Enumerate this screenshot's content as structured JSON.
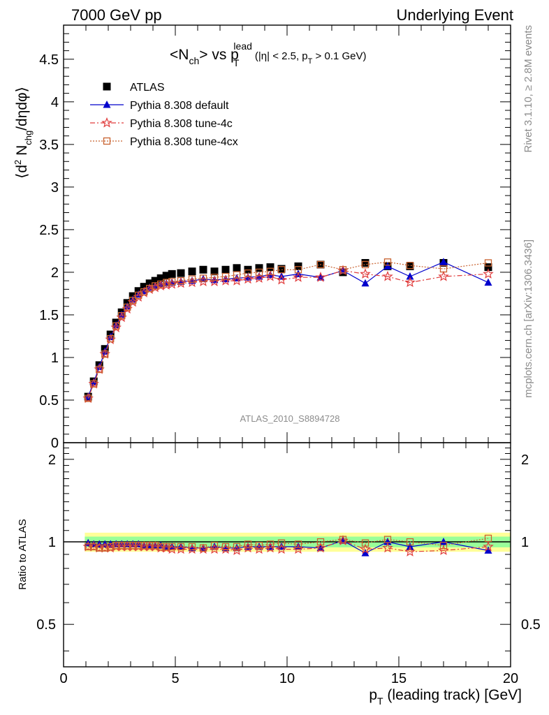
{
  "header": {
    "left": "7000 GeV pp",
    "right": "Underlying Event"
  },
  "side": {
    "rivet": "Rivet 3.1.10, ≥ 2.8M events",
    "mcplots": "mcplots.cern.ch [arXiv:1306.3436]"
  },
  "watermark": "ATLAS_2010_S8894728",
  "colors": {
    "atlas": "#000000",
    "default": "#0000cc",
    "tune4c": "#e03c3c",
    "tune4cx": "#c8612e",
    "band_inner": "#99ff99",
    "band_outer": "#ffff99"
  },
  "chart_data": [
    {
      "type": "scatter",
      "title": "<N_ch> vs p_T^lead (|η| < 2.5, p_T > 0.1 GeV)",
      "ylabel": "⟨d² N_chg/dηdφ⟩",
      "xlim": [
        0,
        20
      ],
      "ylim": [
        0,
        4.9
      ],
      "x_ticks": [
        0,
        5,
        10,
        15,
        20
      ],
      "y_ticks": [
        "0",
        "0.5",
        "1",
        "1.5",
        "2",
        "2.5",
        "3",
        "3.5",
        "4",
        "4.5"
      ],
      "legend_position": "top-left",
      "x": [
        1.1,
        1.35,
        1.6,
        1.85,
        2.1,
        2.35,
        2.6,
        2.85,
        3.1,
        3.35,
        3.6,
        3.85,
        4.1,
        4.35,
        4.6,
        4.85,
        5.25,
        5.75,
        6.25,
        6.75,
        7.25,
        7.75,
        8.25,
        8.75,
        9.25,
        9.75,
        10.5,
        11.5,
        12.5,
        13.5,
        14.5,
        15.5,
        17,
        19
      ],
      "series": [
        {
          "name": "ATLAS",
          "marker": "square",
          "values": [
            0.54,
            0.72,
            0.91,
            1.1,
            1.27,
            1.41,
            1.53,
            1.64,
            1.72,
            1.78,
            1.83,
            1.87,
            1.9,
            1.93,
            1.96,
            1.98,
            1.99,
            2.01,
            2.03,
            2.01,
            2.03,
            2.05,
            2.03,
            2.05,
            2.06,
            2.04,
            2.07,
            2.09,
            2.0,
            2.11,
            2.07,
            2.07,
            2.11,
            2.06
          ]
        },
        {
          "name": "Pythia 8.308 default",
          "marker": "triangle",
          "values": [
            0.54,
            0.71,
            0.89,
            1.07,
            1.24,
            1.38,
            1.5,
            1.6,
            1.68,
            1.74,
            1.78,
            1.82,
            1.84,
            1.86,
            1.87,
            1.88,
            1.89,
            1.9,
            1.92,
            1.91,
            1.92,
            1.93,
            1.94,
            1.95,
            1.97,
            1.95,
            1.98,
            1.94,
            2.02,
            1.87,
            2.07,
            1.95,
            2.12,
            1.88
          ]
        },
        {
          "name": "Pythia 8.308 tune-4c",
          "marker": "star",
          "values": [
            0.52,
            0.69,
            0.86,
            1.04,
            1.21,
            1.35,
            1.47,
            1.57,
            1.65,
            1.71,
            1.76,
            1.8,
            1.82,
            1.84,
            1.85,
            1.86,
            1.87,
            1.88,
            1.89,
            1.89,
            1.9,
            1.9,
            1.92,
            1.93,
            1.95,
            1.91,
            1.94,
            1.94,
            2.02,
            1.98,
            1.95,
            1.88,
            1.95,
            1.98
          ]
        },
        {
          "name": "Pythia 8.308 tune-4cx",
          "marker": "open-square",
          "values": [
            0.52,
            0.69,
            0.86,
            1.04,
            1.22,
            1.37,
            1.49,
            1.59,
            1.67,
            1.73,
            1.77,
            1.81,
            1.84,
            1.86,
            1.88,
            1.89,
            1.9,
            1.92,
            1.93,
            1.94,
            1.95,
            1.97,
            1.99,
            2.0,
            2.01,
            2.03,
            2.03,
            2.09,
            2.03,
            2.09,
            2.12,
            2.08,
            2.04,
            2.11
          ]
        }
      ]
    },
    {
      "type": "scatter",
      "ylabel": "Ratio to ATLAS",
      "xlabel": "p_T (leading track) [GeV]",
      "xlim": [
        0,
        20
      ],
      "ylim": [
        0.35,
        2.3
      ],
      "x_ticks": [
        0,
        5,
        10,
        15,
        20
      ],
      "y_ticks": [
        "0.5",
        "1",
        "2"
      ],
      "band_inner_halfwidth": 0.045,
      "band_outer_halfwidth": 0.08,
      "x": [
        1.1,
        1.35,
        1.6,
        1.85,
        2.1,
        2.35,
        2.6,
        2.85,
        3.1,
        3.35,
        3.6,
        3.85,
        4.1,
        4.35,
        4.6,
        4.85,
        5.25,
        5.75,
        6.25,
        6.75,
        7.25,
        7.75,
        8.25,
        8.75,
        9.25,
        9.75,
        10.5,
        11.5,
        12.5,
        13.5,
        14.5,
        15.5,
        17,
        19
      ],
      "series": [
        {
          "name": "Pythia 8.308 default",
          "marker": "triangle",
          "values": [
            0.99,
            0.98,
            0.98,
            0.98,
            0.98,
            0.98,
            0.98,
            0.98,
            0.98,
            0.98,
            0.97,
            0.97,
            0.97,
            0.97,
            0.96,
            0.96,
            0.96,
            0.95,
            0.95,
            0.96,
            0.95,
            0.95,
            0.96,
            0.96,
            0.96,
            0.96,
            0.96,
            0.95,
            1.01,
            0.91,
            1.0,
            0.96,
            1.0,
            0.93
          ]
        },
        {
          "name": "Pythia 8.308 tune-4c",
          "marker": "star",
          "values": [
            0.96,
            0.96,
            0.95,
            0.95,
            0.95,
            0.96,
            0.96,
            0.96,
            0.96,
            0.96,
            0.96,
            0.96,
            0.96,
            0.95,
            0.95,
            0.94,
            0.94,
            0.94,
            0.94,
            0.94,
            0.94,
            0.93,
            0.95,
            0.94,
            0.95,
            0.94,
            0.94,
            0.95,
            1.01,
            0.94,
            0.95,
            0.92,
            0.93,
            0.96
          ]
        },
        {
          "name": "Pythia 8.308 tune-4cx",
          "marker": "open-square",
          "values": [
            0.96,
            0.96,
            0.95,
            0.95,
            0.96,
            0.97,
            0.97,
            0.97,
            0.97,
            0.97,
            0.97,
            0.97,
            0.97,
            0.96,
            0.96,
            0.96,
            0.96,
            0.96,
            0.95,
            0.97,
            0.96,
            0.96,
            0.98,
            0.97,
            0.98,
            0.99,
            0.98,
            1.0,
            1.02,
            0.99,
            1.02,
            1.0,
            0.97,
            1.03
          ]
        }
      ]
    }
  ]
}
